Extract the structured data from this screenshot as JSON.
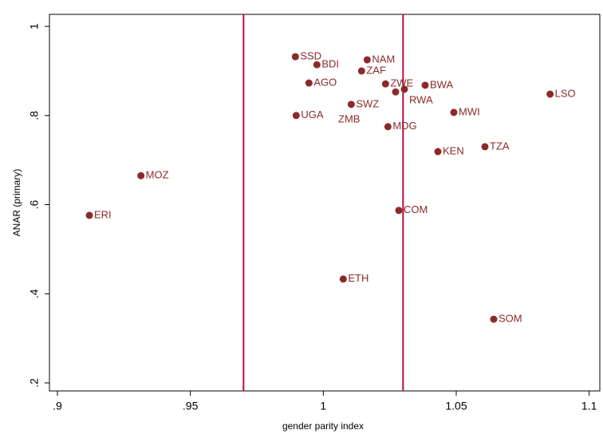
{
  "chart_data": {
    "type": "scatter",
    "x_label": "gender parity index",
    "y_label": "ANAR (primary)",
    "series": [
      {
        "color": "#8b2a2a",
        "labels": [
          "SSD",
          "BDI",
          "NAM",
          "ZAF",
          "AGO",
          "ZWE",
          "BWA",
          "RWA",
          "ZMB",
          "UGA",
          "SWZ",
          "MDG",
          "MWI",
          "LSO",
          "KEN",
          "TZA",
          "MOZ",
          "ERI",
          "COM",
          "ETH",
          "SOM"
        ],
        "x": [
          0.9895,
          0.9976,
          1.0165,
          1.0144,
          0.9946,
          1.0234,
          1.0383,
          1.0305,
          1.0272,
          0.9898,
          1.0105,
          1.0243,
          1.0491,
          1.0853,
          1.0431,
          1.0608,
          0.9314,
          0.912,
          1.0284,
          1.0075,
          1.0641
        ],
        "values": [
          0.932,
          0.914,
          0.925,
          0.9,
          0.873,
          0.871,
          0.868,
          0.859,
          0.853,
          0.8,
          0.825,
          0.775,
          0.807,
          0.848,
          0.719,
          0.73,
          0.665,
          0.576,
          0.587,
          0.433,
          0.343
        ]
      }
    ],
    "vlines": [
      0.97,
      1.03
    ],
    "vline_color": "#b5123e",
    "xlim": [
      0.897,
      1.104
    ],
    "ylim": [
      0.182,
      1.027
    ],
    "xticks": [
      {
        "value": 0.9,
        "label": ".9"
      },
      {
        "value": 0.95,
        "label": ".95"
      },
      1,
      {
        "value": 1.05,
        "label": "1.05"
      },
      {
        "value": 1.1,
        "label": "1.1"
      }
    ],
    "yticks": [
      {
        "value": 0.2,
        "label": ".2"
      },
      {
        "value": 0.4,
        "label": ".4"
      },
      {
        "value": 0.6,
        "label": ".6"
      },
      {
        "value": 0.8,
        "label": ".8"
      },
      1
    ],
    "grid": false
  }
}
